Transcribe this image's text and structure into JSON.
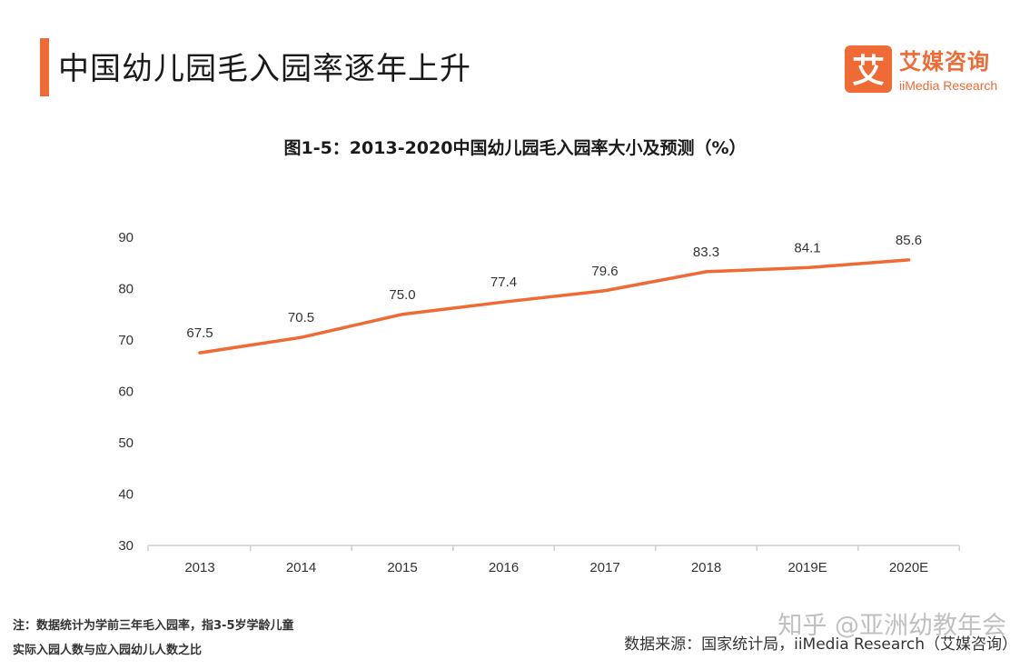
{
  "header": {
    "title": "中国幼儿园毛入园率逐年上升",
    "accent_color": "#ef6a35"
  },
  "logo": {
    "mark_char": "艾",
    "name_cn": "艾媒咨询",
    "name_en": "iiMedia Research",
    "color": "#ef6a35"
  },
  "chart_data": {
    "type": "line",
    "title": "图1-5：2013-2020中国幼儿园毛入园率大小及预测（%）",
    "categories": [
      "2013",
      "2014",
      "2015",
      "2016",
      "2017",
      "2018",
      "2019E",
      "2020E"
    ],
    "values": [
      67.5,
      70.5,
      75.0,
      77.4,
      79.6,
      83.3,
      84.1,
      85.6
    ],
    "data_labels": [
      "67.5",
      "70.5",
      "75.0",
      "77.4",
      "79.6",
      "83.3",
      "84.1",
      "85.6"
    ],
    "y_ticks": [
      "30",
      "40",
      "50",
      "60",
      "70",
      "80",
      "90"
    ],
    "ylim": [
      30,
      90
    ],
    "xlabel": "",
    "ylabel": "",
    "grid": false,
    "line_color": "#ef6a35"
  },
  "footer": {
    "note_line1": "注：数据统计为学前三年毛入园率，指3-5岁学龄儿童",
    "note_line2": "实际入园人数与应入园幼儿人数之比",
    "source": "数据来源：国家统计局，iiMedia Research（艾媒咨询）",
    "watermark": "知乎 @亚洲幼教年会"
  }
}
